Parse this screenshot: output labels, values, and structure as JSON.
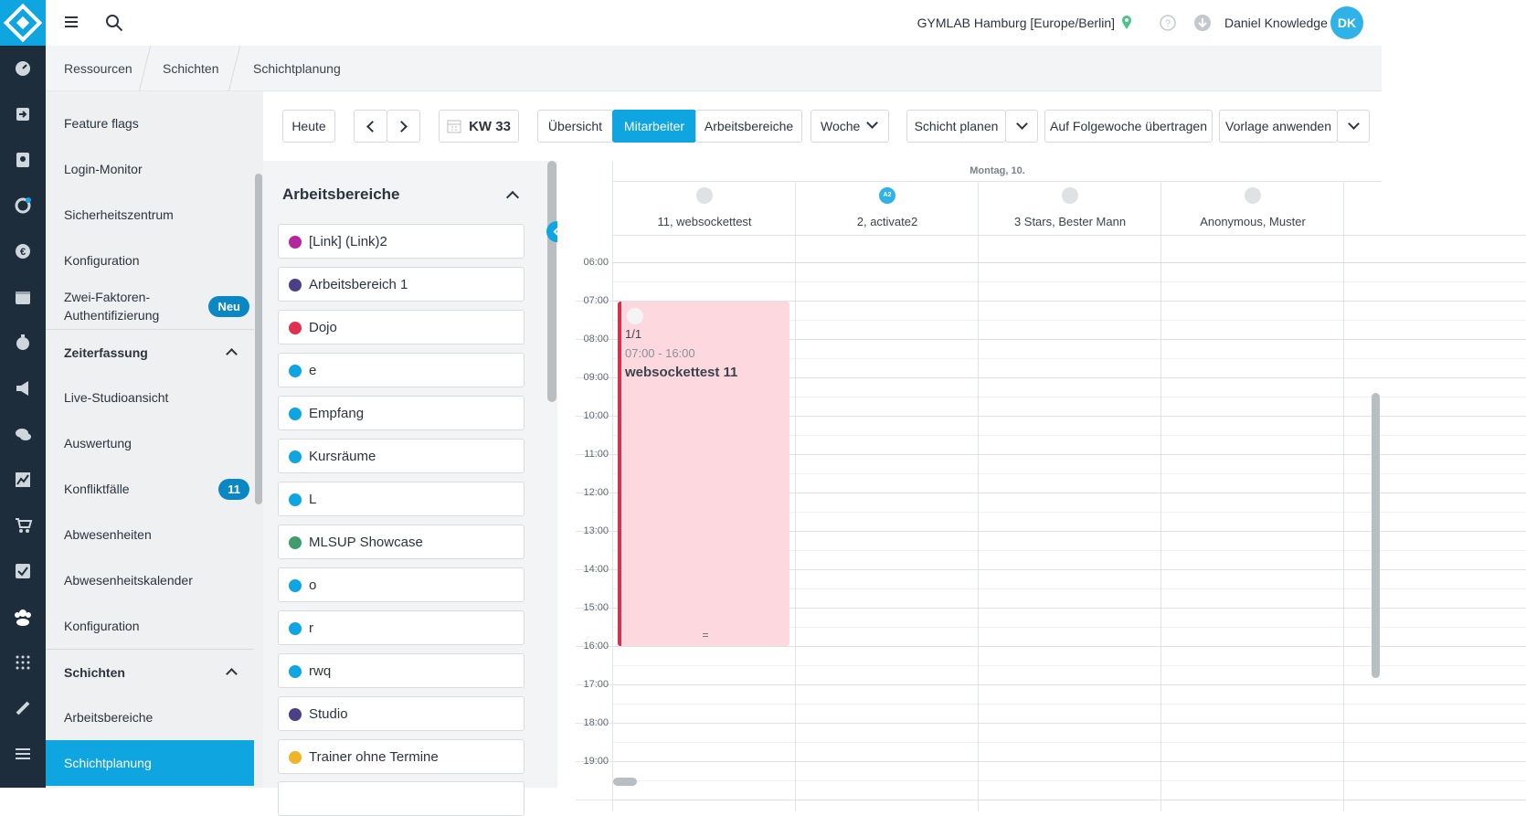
{
  "topbar": {
    "location": "GYMLAB Hamburg [Europe/Berlin]",
    "user": "Daniel Knowledge",
    "avatar": "DK"
  },
  "breadcrumb": [
    "Ressourcen",
    "Schichten",
    "Schichtplanung"
  ],
  "sidebar": {
    "items": [
      {
        "label": "Feature flags"
      },
      {
        "label": "Login-Monitor"
      },
      {
        "label": "Sicherheitszentrum"
      },
      {
        "label": "Konfiguration"
      },
      {
        "label": "Zwei-Faktoren-Authentifizierung",
        "badge": "Neu"
      }
    ],
    "sections": [
      {
        "title": "Zeiterfassung",
        "items": [
          {
            "label": "Live-Studioansicht"
          },
          {
            "label": "Auswertung"
          },
          {
            "label": "Konfliktfälle",
            "badge": 11
          },
          {
            "label": "Abwesenheiten"
          },
          {
            "label": "Abwesenheitskalender"
          },
          {
            "label": "Konfiguration"
          }
        ]
      },
      {
        "title": "Schichten",
        "items": [
          {
            "label": "Arbeitsbereiche"
          },
          {
            "label": "Schichtplanung",
            "active": true
          }
        ]
      }
    ]
  },
  "toolbar": {
    "today": "Heute",
    "week": "KW 33",
    "views": [
      "Übersicht",
      "Mitarbeiter",
      "Arbeitsbereiche"
    ],
    "active_view": 1,
    "range": "Woche",
    "actions": [
      "Schicht planen",
      "Auf Folgewoche übertragen",
      "Vorlage anwenden"
    ]
  },
  "areas": {
    "title": "Arbeitsbereiche",
    "items": [
      {
        "name": "[Link] (Link)2",
        "color": "#b3279e"
      },
      {
        "name": "Arbeitsbereich 1",
        "color": "#4b3f87"
      },
      {
        "name": "Dojo",
        "color": "#e0304f"
      },
      {
        "name": "e",
        "color": "#0ea5e0"
      },
      {
        "name": "Empfang",
        "color": "#0ea5e0"
      },
      {
        "name": "Kursräume",
        "color": "#0ea5e0"
      },
      {
        "name": "L",
        "color": "#0ea5e0"
      },
      {
        "name": "MLSUP Showcase",
        "color": "#3f9d6b"
      },
      {
        "name": "o",
        "color": "#0ea5e0"
      },
      {
        "name": "r",
        "color": "#0ea5e0"
      },
      {
        "name": "rwq",
        "color": "#0ea5e0"
      },
      {
        "name": "Studio",
        "color": "#4b3f87"
      },
      {
        "name": "Trainer ohne Termine",
        "color": "#f0b429"
      }
    ]
  },
  "calendar": {
    "day": "Montag, 10.",
    "employees": [
      {
        "name": "11, websockettest"
      },
      {
        "name": "2, activate2",
        "initials": "A2"
      },
      {
        "name": "3 Stars, Bester Mann"
      },
      {
        "name": "Anonymous, Muster"
      }
    ],
    "hours": [
      "06:00",
      "07:00",
      "08:00",
      "09:00",
      "10:00",
      "11:00",
      "12:00",
      "13:00",
      "14:00",
      "15:00",
      "16:00",
      "17:00",
      "18:00",
      "19:00"
    ],
    "shift": {
      "count": "1/1",
      "time": "07:00 - 16:00",
      "title": "websockettest 11",
      "handle": "="
    }
  }
}
